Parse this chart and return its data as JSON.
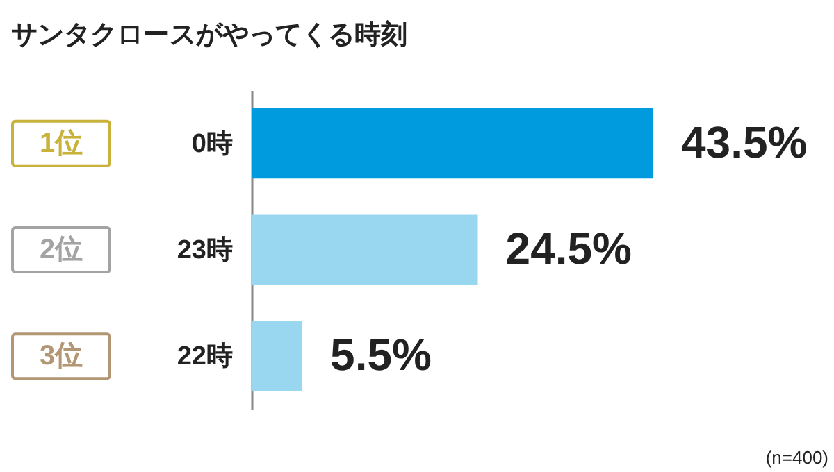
{
  "chart_data": {
    "type": "bar",
    "orientation": "horizontal",
    "title": "サンタクロースがやってくる時刻",
    "categories": [
      "0時",
      "23時",
      "22時"
    ],
    "values": [
      43.5,
      24.5,
      5.5
    ],
    "colors": [
      "#009ade",
      "#99d6f0",
      "#99d6f0"
    ],
    "value_labels": [
      "43.5%",
      "24.5%",
      "5.5%"
    ],
    "annotations": [
      "1位",
      "2位",
      "3位",
      "(n=400)"
    ]
  }
}
